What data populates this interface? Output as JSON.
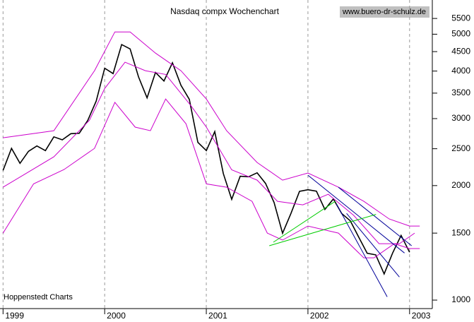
{
  "chart_data": {
    "type": "line",
    "title": "Nasdaq compx Wochenchart",
    "source": "www.buero-dr-schulz.de",
    "credit": "Hoppenstedt Charts",
    "log_scale": true,
    "grid": true,
    "xlim": [
      1998.97,
      2003.21
    ],
    "xticks": [
      1999,
      2000,
      2001,
      2002,
      2003
    ],
    "ylim": [
      950,
      6150
    ],
    "yticks": [
      1000,
      1500,
      2000,
      2500,
      3000,
      3500,
      4000,
      4500,
      5000,
      5500
    ],
    "series": [
      {
        "color": "#000000",
        "x": [
          1999.0,
          1999.083,
          1999.167,
          1999.25,
          1999.333,
          1999.417,
          1999.5,
          1999.583,
          1999.667,
          1999.75,
          1999.833,
          1999.917,
          2000.0,
          2000.083,
          2000.167,
          2000.25,
          2000.333,
          2000.417,
          2000.5,
          2000.583,
          2000.667,
          2000.75,
          2000.833,
          2000.917,
          2001.0,
          2001.083,
          2001.167,
          2001.25,
          2001.333,
          2001.417,
          2001.5,
          2001.583,
          2001.667,
          2001.75,
          2001.833,
          2001.917,
          2002.0,
          2002.083,
          2002.167,
          2002.25,
          2002.333,
          2002.417,
          2002.5,
          2002.583,
          2002.667,
          2002.75,
          2002.833,
          2002.917,
          2003.0
        ],
        "values": [
          2193,
          2505,
          2288,
          2461,
          2542,
          2471,
          2686,
          2638,
          2739,
          2746,
          2966,
          3336,
          4069,
          3940,
          4696,
          4573,
          3861,
          3401,
          3966,
          3767,
          4206,
          3673,
          3370,
          2598,
          2471,
          2773,
          2152,
          1840,
          2116,
          2110,
          2161,
          2027,
          1805,
          1499,
          1690,
          1931,
          1950,
          1934,
          1731,
          1845,
          1688,
          1616,
          1463,
          1328,
          1315,
          1172,
          1330,
          1479,
          1336
        ]
      },
      {
        "color": "#cc00cc",
        "x": [
          1999.0,
          1999.5,
          1999.9,
          2000.1,
          2000.25,
          2000.5,
          2000.75,
          2001.0,
          2001.2,
          2001.5,
          2001.75,
          2002.0,
          2002.3,
          2002.55,
          2002.8,
          2003.0,
          2003.1
        ],
        "values": [
          2671,
          2788,
          4009,
          5070,
          5070,
          4460,
          4009,
          3378,
          2788,
          2300,
          2067,
          2158,
          1981,
          1818,
          1634,
          1566,
          1566
        ]
      },
      {
        "color": "#cc00cc",
        "x": [
          1999.0,
          1999.5,
          1999.85,
          2000.0,
          2000.2,
          2000.4,
          2000.6,
          2000.85,
          2001.0,
          2001.25,
          2001.5,
          2001.7,
          2001.95,
          2002.2,
          2002.45,
          2002.7,
          2002.9,
          2003.05
        ],
        "values": [
          1981,
          2380,
          2970,
          3600,
          4220,
          4009,
          3920,
          3240,
          2850,
          2200,
          2067,
          1818,
          1780,
          1898,
          1670,
          1407,
          1407,
          1500
        ]
      },
      {
        "color": "#cc00cc",
        "x": [
          1999.0,
          1999.3,
          1999.6,
          1999.9,
          2000.1,
          2000.3,
          2000.45,
          2000.6,
          2000.8,
          2001.0,
          2001.2,
          2001.45,
          2001.6,
          2001.75,
          2002.0,
          2002.3,
          2002.55,
          2002.65,
          2002.85,
          2003.0,
          2003.1
        ],
        "values": [
          1500,
          2021,
          2204,
          2506,
          3310,
          2850,
          2788,
          3378,
          2907,
          2021,
          1981,
          1818,
          1500,
          1438,
          1566,
          1500,
          1292,
          1292,
          1407,
          1366,
          1366
        ]
      },
      {
        "color": "#000099",
        "x": [
          2002.0,
          2002.95
        ],
        "values": [
          2130,
          1330
        ]
      },
      {
        "color": "#000099",
        "x": [
          2002.28,
          2002.78
        ],
        "values": [
          1790,
          1020
        ]
      },
      {
        "color": "#000099",
        "x": [
          2002.38,
          2002.9
        ],
        "values": [
          1690,
          1150
        ]
      },
      {
        "color": "#000099",
        "x": [
          2002.3,
          2003.02
        ],
        "values": [
          1980,
          1390
        ]
      },
      {
        "color": "#00cc00",
        "x": [
          2001.62,
          2002.67
        ],
        "values": [
          1390,
          1680
        ]
      },
      {
        "color": "#00cc00",
        "x": [
          2001.66,
          2002.27
        ],
        "values": [
          1420,
          1820
        ]
      }
    ]
  }
}
